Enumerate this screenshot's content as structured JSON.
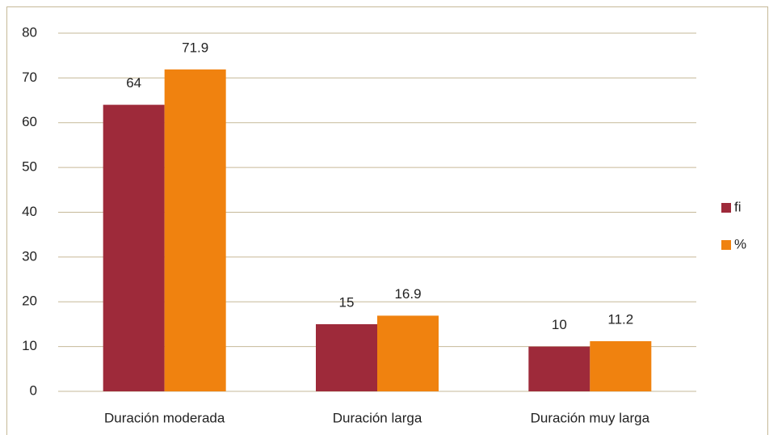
{
  "chart_data": {
    "type": "bar",
    "categories": [
      "Duración moderada",
      "Duración larga",
      "Duración muy larga"
    ],
    "series": [
      {
        "name": "fi",
        "color": "#9e2a3a",
        "values": [
          64,
          15,
          10
        ]
      },
      {
        "name": "%",
        "color": "#f0820f",
        "values": [
          71.9,
          16.9,
          11.2
        ]
      }
    ],
    "ylim": [
      0,
      80
    ],
    "yticks": [
      0,
      10,
      20,
      30,
      40,
      50,
      60,
      70,
      80
    ],
    "grid": true,
    "legend": "right"
  }
}
